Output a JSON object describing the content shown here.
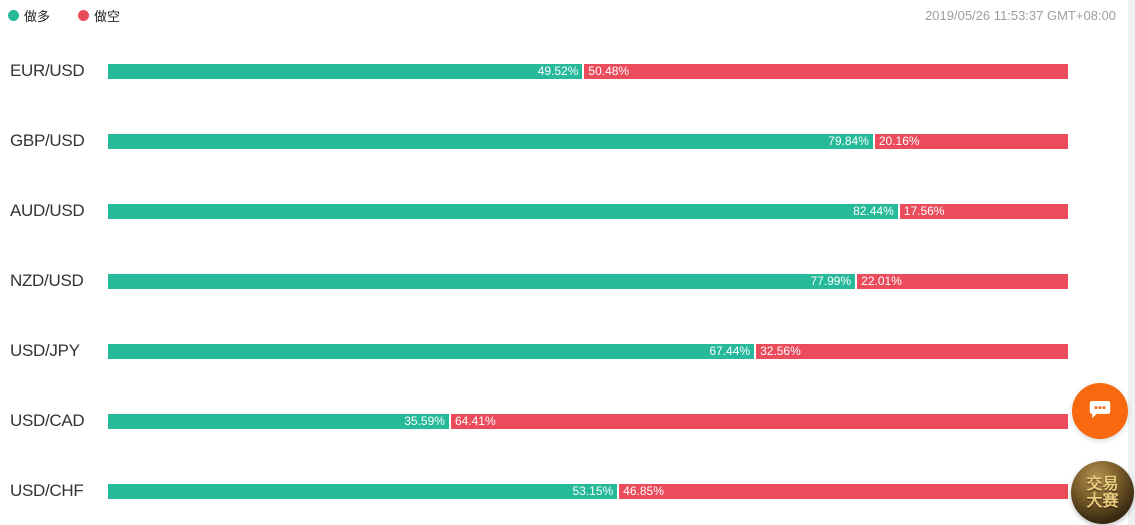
{
  "legend": {
    "long": "做多",
    "short": "做空"
  },
  "timestamp": "2019/05/26 11:53:37 GMT+08:00",
  "colors": {
    "long": "#26b99a",
    "short": "#ea4c5c",
    "chat_button": "#f8690f",
    "badge_text": "#eccb7d"
  },
  "chart_data": {
    "type": "bar",
    "orientation": "horizontal-stacked",
    "title": "",
    "categories": [
      "EUR/USD",
      "GBP/USD",
      "AUD/USD",
      "NZD/USD",
      "USD/JPY",
      "USD/CAD",
      "USD/CHF"
    ],
    "series": [
      {
        "name": "做多",
        "color": "#26b99a",
        "values": [
          49.52,
          79.84,
          82.44,
          77.99,
          67.44,
          35.59,
          53.15
        ]
      },
      {
        "name": "做空",
        "color": "#ea4c5c",
        "values": [
          50.48,
          20.16,
          17.56,
          22.01,
          32.56,
          64.41,
          46.85
        ]
      }
    ],
    "value_suffix": "%",
    "xlim": [
      0,
      100
    ],
    "grid": false,
    "legend_position": "top-left",
    "data_labels": "inside-at-split"
  },
  "floating": {
    "chat_button_icon": "chat-bubble-icon",
    "badge": {
      "line1": "交易",
      "line2": "大赛"
    }
  }
}
